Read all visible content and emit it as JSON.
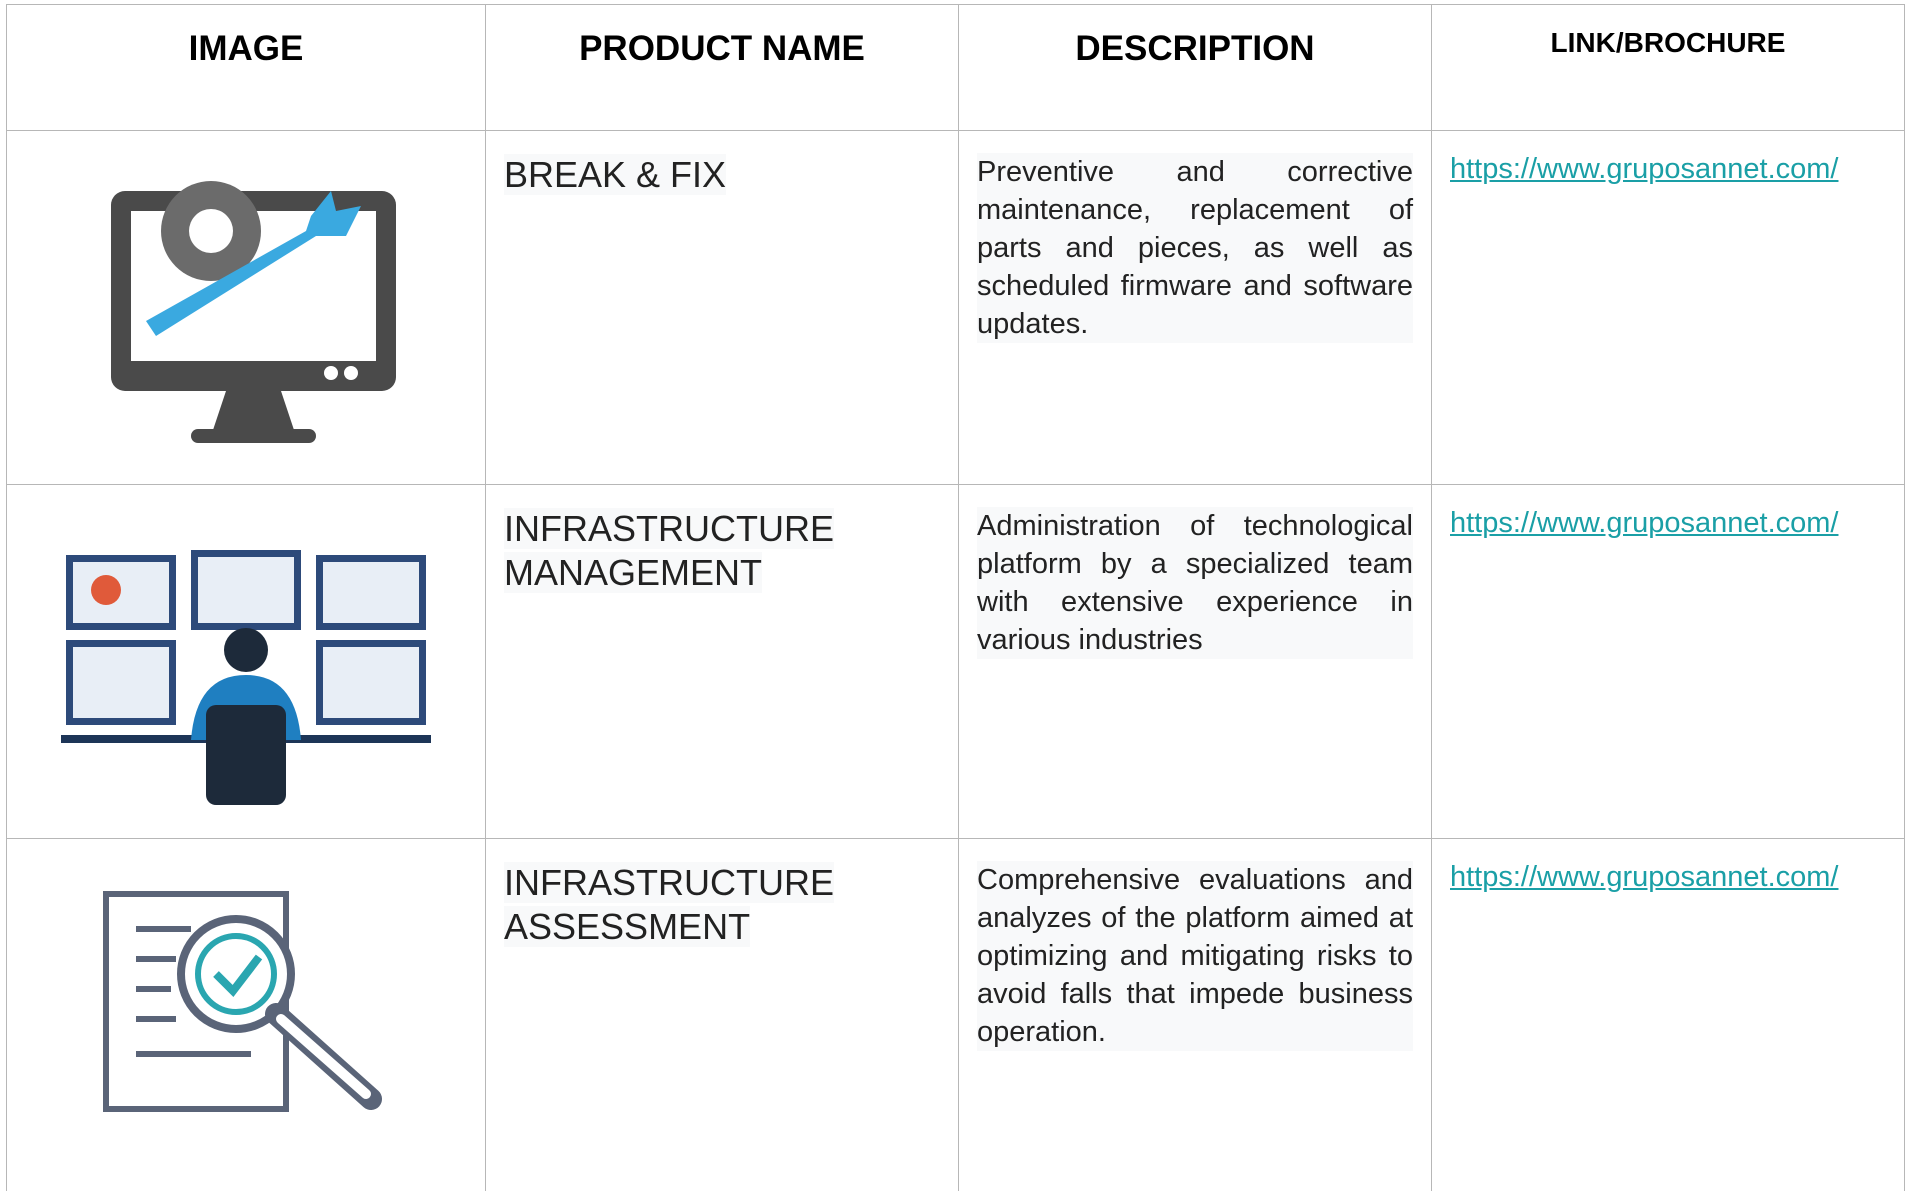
{
  "header": {
    "columns": [
      "IMAGE",
      "PRODUCT NAME",
      "DESCRIPTION",
      "LINK/BROCHURE"
    ]
  },
  "table": {
    "rows": [
      {
        "name": "BREAK & FIX",
        "description": "Preventive and corrective maintenance, replacement of parts and pieces, as well as scheduled firmware and software updates.",
        "link": "https://www.gruposannet.com/"
      },
      {
        "name": "INFRASTRUCTURE MANAGEMENT",
        "description": "Administration of technological platform by a specialized team with extensive experience in various industries",
        "link": "https://www.gruposannet.com/"
      },
      {
        "name": "INFRASTRUCTURE ASSESSMENT",
        "description": "Comprehensive evaluations and analyzes of the platform aimed at optimizing and mitigating risks to avoid falls that impede business operation.",
        "link": "https://www.gruposannet.com/"
      }
    ]
  }
}
